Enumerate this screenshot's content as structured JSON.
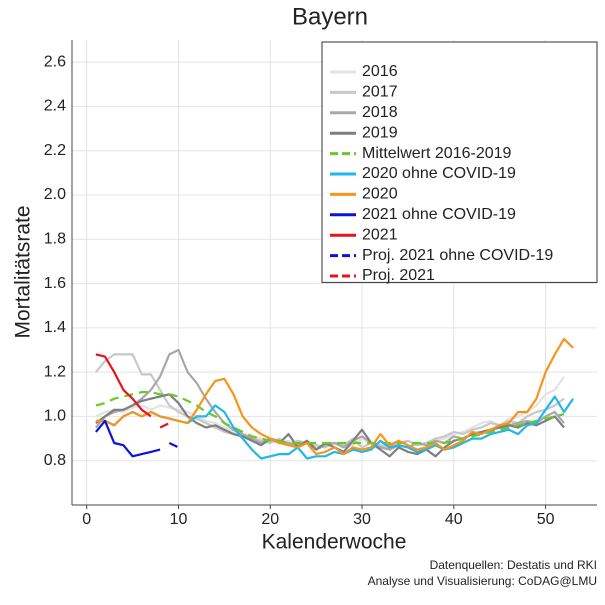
{
  "chart_data": {
    "type": "line",
    "title": "Bayern",
    "x_label": "Kalenderwoche",
    "y_label": "Mortalitätsrate",
    "caption": [
      "Datenquellen: Destatis und RKI",
      "Analyse und Visualisierung: CoDAG@LMU"
    ],
    "x": [
      1,
      2,
      3,
      4,
      5,
      6,
      7,
      8,
      9,
      10,
      11,
      12,
      13,
      14,
      15,
      16,
      17,
      18,
      19,
      20,
      21,
      22,
      23,
      24,
      25,
      26,
      27,
      28,
      29,
      30,
      31,
      32,
      33,
      34,
      35,
      36,
      37,
      38,
      39,
      40,
      41,
      42,
      43,
      44,
      45,
      46,
      47,
      48,
      49,
      50,
      51,
      52,
      53
    ],
    "xlim": [
      -1.6,
      55.6
    ],
    "xticks": [
      0,
      10,
      20,
      30,
      40,
      50
    ],
    "ylim": [
      0.6,
      2.7
    ],
    "yticks": [
      0.8,
      {
        "value": 1,
        "label": "1.0"
      },
      1.2,
      1.4,
      1.6,
      1.8,
      {
        "value": 2,
        "label": "2.0"
      },
      2.2,
      2.4,
      2.6
    ],
    "grid": true,
    "legend": "top-right",
    "series": [
      {
        "name": "2016",
        "color": "#e3e3e3",
        "linestyle": "solid",
        "values": [
          1.0,
          1.02,
          1.03,
          1.02,
          1.04,
          1.05,
          1.03,
          1.05,
          1.04,
          1.03,
          1.02,
          1.0,
          0.98,
          0.97,
          0.95,
          0.93,
          0.92,
          0.91,
          0.9,
          0.89,
          0.88,
          0.89,
          0.87,
          0.88,
          0.86,
          0.87,
          0.88,
          0.86,
          0.87,
          0.9,
          0.88,
          0.87,
          0.86,
          0.87,
          0.86,
          0.88,
          0.87,
          0.89,
          0.9,
          0.92,
          0.93,
          0.95,
          0.97,
          0.98,
          0.96,
          0.99,
          1.0,
          1.02,
          1.05,
          1.1,
          1.12,
          1.18,
          null
        ]
      },
      {
        "name": "2017",
        "color": "#c8c8c8",
        "linestyle": "solid",
        "values": [
          1.2,
          1.25,
          1.28,
          1.28,
          1.28,
          1.19,
          1.19,
          1.12,
          1.05,
          1.02,
          1.0,
          0.99,
          0.97,
          0.95,
          0.93,
          0.92,
          0.91,
          0.9,
          0.89,
          0.88,
          0.9,
          0.87,
          0.89,
          0.88,
          0.87,
          0.86,
          0.88,
          0.87,
          0.9,
          0.86,
          0.88,
          0.87,
          0.86,
          0.88,
          0.89,
          0.87,
          0.88,
          0.9,
          0.91,
          0.93,
          0.92,
          0.94,
          0.95,
          0.97,
          0.96,
          0.98,
          0.97,
          1.0,
          1.02,
          1.03,
          1.05,
          1.08,
          null
        ]
      },
      {
        "name": "2018",
        "color": "#a8a8a8",
        "linestyle": "solid",
        "values": [
          0.95,
          1.0,
          1.02,
          1.03,
          1.05,
          1.08,
          1.12,
          1.18,
          1.28,
          1.3,
          1.2,
          1.15,
          1.08,
          1.02,
          0.97,
          0.94,
          0.92,
          0.9,
          0.88,
          0.9,
          0.89,
          0.88,
          0.87,
          0.89,
          0.85,
          0.87,
          0.88,
          0.86,
          0.89,
          0.91,
          0.88,
          0.86,
          0.85,
          0.87,
          0.86,
          0.88,
          0.87,
          0.89,
          0.88,
          0.91,
          0.9,
          0.92,
          0.93,
          0.94,
          0.95,
          0.96,
          0.97,
          0.98,
          0.97,
          1.0,
          1.02,
          0.97,
          null
        ]
      },
      {
        "name": "2019",
        "color": "#7f7f7f",
        "linestyle": "solid",
        "values": [
          0.97,
          1.0,
          1.03,
          1.03,
          1.05,
          1.07,
          1.08,
          1.09,
          1.1,
          1.06,
          1.0,
          0.97,
          0.95,
          0.96,
          0.94,
          0.92,
          0.91,
          0.89,
          0.87,
          0.9,
          0.88,
          0.92,
          0.86,
          0.89,
          0.85,
          0.88,
          0.86,
          0.84,
          0.89,
          0.94,
          0.88,
          0.85,
          0.82,
          0.86,
          0.84,
          0.83,
          0.85,
          0.82,
          0.86,
          0.89,
          0.9,
          0.92,
          0.93,
          0.94,
          0.95,
          0.96,
          0.95,
          0.97,
          0.96,
          0.98,
          1.0,
          0.95,
          null
        ]
      },
      {
        "name": "Mittelwert 2016-2019",
        "color": "#66cc22",
        "linestyle": "dashed",
        "values": [
          1.05,
          1.06,
          1.08,
          1.09,
          1.1,
          1.11,
          1.11,
          1.1,
          1.1,
          1.09,
          1.07,
          1.05,
          1.02,
          1.0,
          0.97,
          0.95,
          0.93,
          0.91,
          0.9,
          0.89,
          0.89,
          0.88,
          0.88,
          0.88,
          0.88,
          0.88,
          0.88,
          0.88,
          0.88,
          0.88,
          0.88,
          0.88,
          0.88,
          0.88,
          0.88,
          0.88,
          0.88,
          0.88,
          0.88,
          0.89,
          0.9,
          0.91,
          0.92,
          0.93,
          0.94,
          0.95,
          0.96,
          0.97,
          0.98,
          0.99,
          1.0,
          1.01,
          null
        ]
      },
      {
        "name": "2020 ohne COVID-19",
        "color": "#1eb8ea",
        "linestyle": "solid",
        "values": [
          0.98,
          0.98,
          0.96,
          1.0,
          1.02,
          1.0,
          1.02,
          1.0,
          0.99,
          0.98,
          0.97,
          1.0,
          1.0,
          1.05,
          1.02,
          0.95,
          0.9,
          0.85,
          0.81,
          0.82,
          0.83,
          0.83,
          0.86,
          0.81,
          0.82,
          0.82,
          0.84,
          0.83,
          0.85,
          0.84,
          0.85,
          0.89,
          0.86,
          0.87,
          0.86,
          0.84,
          0.85,
          0.87,
          0.85,
          0.86,
          0.88,
          0.9,
          0.9,
          0.92,
          0.93,
          0.94,
          0.92,
          0.96,
          0.97,
          1.03,
          1.09,
          1.02,
          1.08
        ]
      },
      {
        "name": "2020",
        "color": "#f7941d",
        "linestyle": "solid",
        "values": [
          0.98,
          0.98,
          0.96,
          1.0,
          1.02,
          1.0,
          1.02,
          1.0,
          0.99,
          0.98,
          0.97,
          1.03,
          1.1,
          1.16,
          1.17,
          1.1,
          1.0,
          0.95,
          0.92,
          0.9,
          0.88,
          0.87,
          0.86,
          0.88,
          0.83,
          0.84,
          0.86,
          0.83,
          0.86,
          0.85,
          0.86,
          0.92,
          0.87,
          0.89,
          0.87,
          0.85,
          0.86,
          0.88,
          0.85,
          0.87,
          0.89,
          0.93,
          0.92,
          0.94,
          0.96,
          0.97,
          1.02,
          1.02,
          1.08,
          1.2,
          1.28,
          1.35,
          1.31
        ]
      },
      {
        "name": "2021 ohne COVID-19",
        "color": "#0a14d8",
        "linestyle": "solid",
        "values": [
          0.93,
          0.98,
          0.88,
          0.87,
          0.82,
          0.83,
          0.84,
          0.85,
          null,
          null,
          null,
          null,
          null,
          null,
          null,
          null,
          null,
          null,
          null,
          null,
          null,
          null,
          null,
          null,
          null,
          null,
          null,
          null,
          null,
          null,
          null,
          null,
          null,
          null,
          null,
          null,
          null,
          null,
          null,
          null,
          null,
          null,
          null,
          null,
          null,
          null,
          null,
          null,
          null,
          null,
          null,
          null,
          null
        ]
      },
      {
        "name": "2021",
        "color": "#e8141a",
        "linestyle": "solid",
        "values": [
          1.28,
          1.27,
          1.2,
          1.12,
          1.08,
          1.03,
          1.0,
          null,
          null,
          null,
          null,
          null,
          null,
          null,
          null,
          null,
          null,
          null,
          null,
          null,
          null,
          null,
          null,
          null,
          null,
          null,
          null,
          null,
          null,
          null,
          null,
          null,
          null,
          null,
          null,
          null,
          null,
          null,
          null,
          null,
          null,
          null,
          null,
          null,
          null,
          null,
          null,
          null,
          null,
          null,
          null,
          null,
          null
        ]
      },
      {
        "name": "Proj. 2021 ohne COVID-19",
        "color": "#0a14d8",
        "linestyle": "dashed",
        "values": [
          null,
          null,
          null,
          null,
          null,
          null,
          null,
          null,
          0.88,
          0.86,
          null,
          null,
          null,
          null,
          null,
          null,
          null,
          null,
          null,
          null,
          null,
          null,
          null,
          null,
          null,
          null,
          null,
          null,
          null,
          null,
          null,
          null,
          null,
          null,
          null,
          null,
          null,
          null,
          null,
          null,
          null,
          null,
          null,
          null,
          null,
          null,
          null,
          null,
          null,
          null,
          null,
          null,
          null
        ]
      },
      {
        "name": "Proj. 2021",
        "color": "#e8141a",
        "linestyle": "dashed",
        "values": [
          null,
          null,
          null,
          null,
          null,
          null,
          null,
          0.95,
          0.97,
          null,
          null,
          null,
          null,
          null,
          null,
          null,
          null,
          null,
          null,
          null,
          null,
          null,
          null,
          null,
          null,
          null,
          null,
          null,
          null,
          null,
          null,
          null,
          null,
          null,
          null,
          null,
          null,
          null,
          null,
          null,
          null,
          null,
          null,
          null,
          null,
          null,
          null,
          null,
          null,
          null,
          null,
          null,
          null
        ]
      }
    ]
  }
}
